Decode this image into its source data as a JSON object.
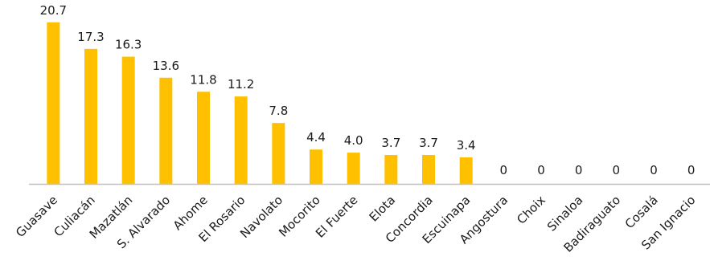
{
  "chart_data": {
    "type": "bar",
    "title": "",
    "xlabel": "",
    "ylabel": "",
    "ylim": [
      0,
      21.5
    ],
    "grid": false,
    "legend": "none",
    "bar_color": "#FFC000",
    "axis_color": "#BFBFBF",
    "categories": [
      "Guasave",
      "Culiacán",
      "Mazatlán",
      "S. Alvarado",
      "Ahome",
      "El Rosario",
      "Navolato",
      "Mocorito",
      "El Fuerte",
      "Elota",
      "Concordia",
      "Escuinapa",
      "Angostura",
      "Choix",
      "Sinaloa",
      "Badiraguato",
      "Cosalá",
      "San Ignacio"
    ],
    "values": [
      20.7,
      17.3,
      16.3,
      13.6,
      11.8,
      11.2,
      7.8,
      4.4,
      4.0,
      3.7,
      3.7,
      3.4,
      0,
      0,
      0,
      0,
      0,
      0
    ],
    "value_labels": [
      "20.7",
      "17.3",
      "16.3",
      "13.6",
      "11.8",
      "11.2",
      "7.8",
      "4.4",
      "4.0",
      "3.7",
      "3.7",
      "3.4",
      "0",
      "0",
      "0",
      "0",
      "0",
      "0"
    ]
  }
}
